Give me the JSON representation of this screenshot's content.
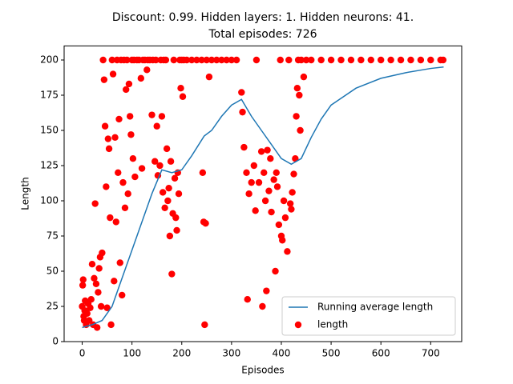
{
  "chart_data": {
    "type": "combo",
    "title": [
      "Discount: 0.99. Hidden layers: 1. Hidden neurons: 41.",
      "Total episodes: 726"
    ],
    "xlabel": "Episodes",
    "ylabel": "Length",
    "xlim": [
      -36.3,
      762.3
    ],
    "ylim": [
      0,
      210
    ],
    "xticks": [
      0,
      100,
      200,
      300,
      400,
      500,
      600,
      700
    ],
    "yticks": [
      0,
      25,
      50,
      75,
      100,
      125,
      150,
      175,
      200
    ],
    "legend": "lower right",
    "series": [
      {
        "name": "Running average length",
        "type": "line",
        "color": "#1f77b4",
        "x": [
          0,
          20,
          40,
          60,
          80,
          100,
          120,
          140,
          160,
          180,
          200,
          220,
          245,
          260,
          280,
          300,
          320,
          340,
          360,
          380,
          400,
          420,
          440,
          460,
          480,
          500,
          550,
          600,
          650,
          700,
          726
        ],
        "values": [
          10,
          12,
          15,
          25,
          45,
          65,
          85,
          105,
          122,
          120,
          122,
          132,
          146,
          150,
          160,
          168,
          172,
          160,
          150,
          140,
          130,
          126,
          130,
          145,
          158,
          168,
          180,
          187,
          191,
          194,
          195
        ]
      },
      {
        "name": "length",
        "type": "scatter",
        "color": "#ff0000",
        "x": [
          0,
          1,
          2,
          3,
          4,
          5,
          6,
          8,
          10,
          12,
          14,
          16,
          18,
          20,
          22,
          24,
          26,
          28,
          30,
          32,
          34,
          36,
          38,
          40,
          42,
          44,
          46,
          48,
          50,
          52,
          54,
          56,
          58,
          60,
          62,
          64,
          66,
          68,
          70,
          72,
          74,
          76,
          78,
          80,
          82,
          84,
          86,
          88,
          90,
          92,
          94,
          96,
          98,
          100,
          102,
          104,
          106,
          110,
          114,
          118,
          120,
          122,
          126,
          130,
          132,
          136,
          140,
          142,
          146,
          148,
          150,
          152,
          156,
          158,
          160,
          162,
          164,
          166,
          168,
          170,
          172,
          174,
          176,
          178,
          180,
          182,
          184,
          186,
          188,
          190,
          192,
          194,
          196,
          198,
          200,
          202,
          204,
          210,
          220,
          230,
          240,
          242,
          244,
          246,
          248,
          250,
          255,
          260,
          270,
          280,
          290,
          300,
          310,
          320,
          322,
          325,
          330,
          332,
          335,
          340,
          345,
          348,
          350,
          355,
          360,
          362,
          365,
          368,
          370,
          372,
          375,
          378,
          380,
          385,
          388,
          390,
          392,
          395,
          398,
          400,
          402,
          405,
          408,
          412,
          415,
          418,
          420,
          422,
          425,
          428,
          430,
          432,
          434,
          436,
          438,
          440,
          445,
          450,
          460,
          480,
          500,
          520,
          540,
          560,
          580,
          600,
          620,
          640,
          660,
          680,
          700,
          720,
          725
        ],
        "values": [
          25,
          40,
          44,
          18,
          15,
          22,
          29,
          12,
          20,
          27,
          15,
          24,
          30,
          55,
          12,
          45,
          98,
          41,
          10,
          35,
          52,
          60,
          25,
          63,
          200,
          186,
          153,
          110,
          24,
          144,
          137,
          88,
          12,
          200,
          190,
          43,
          145,
          85,
          200,
          120,
          158,
          56,
          200,
          33,
          113,
          200,
          95,
          179,
          200,
          105,
          183,
          160,
          147,
          200,
          130,
          200,
          117,
          200,
          200,
          187,
          123,
          200,
          200,
          193,
          200,
          200,
          161,
          200,
          128,
          200,
          153,
          118,
          125,
          200,
          160,
          106,
          200,
          95,
          200,
          137,
          100,
          109,
          75,
          128,
          48,
          91,
          200,
          116,
          88,
          79,
          120,
          105,
          200,
          180,
          200,
          174,
          200,
          200,
          200,
          200,
          200,
          120,
          85,
          12,
          84,
          200,
          188,
          200,
          200,
          200,
          200,
          200,
          200,
          177,
          163,
          138,
          120,
          30,
          105,
          113,
          125,
          93,
          200,
          113,
          135,
          25,
          120,
          100,
          36,
          136,
          107,
          130,
          92,
          115,
          50,
          120,
          110,
          83,
          200,
          75,
          72,
          100,
          88,
          64,
          200,
          98,
          94,
          106,
          119,
          130,
          160,
          180,
          200,
          175,
          150,
          200,
          188,
          200,
          200,
          200,
          200,
          200,
          200,
          200,
          200,
          200,
          200,
          200,
          200,
          200,
          200,
          200,
          200
        ]
      }
    ]
  }
}
